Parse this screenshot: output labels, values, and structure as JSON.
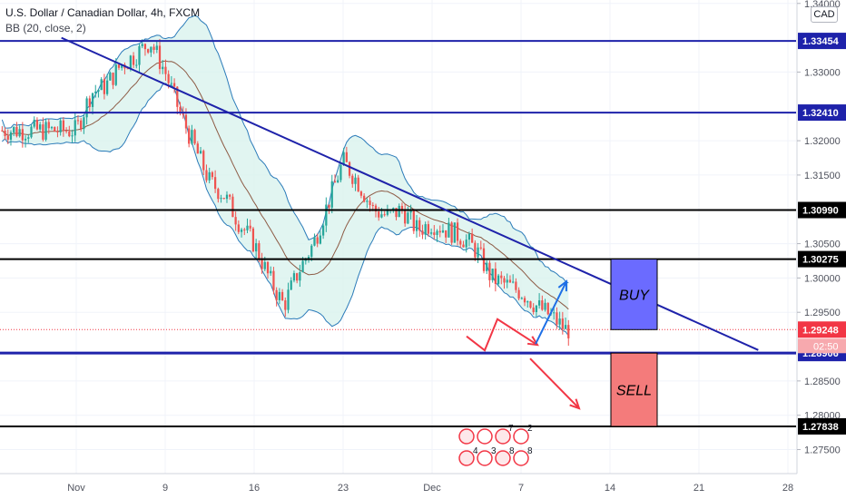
{
  "header": {
    "symbol_title": "U.S. Dollar / Canadian Dollar, 4h, FXCM",
    "indicator": "BB (20, close, 2)",
    "currency": "CAD"
  },
  "chart_data": {
    "type": "candlestick",
    "title": "U.S. Dollar / Canadian Dollar, 4h, FXCM",
    "indicator": "BB (20, close, 2)",
    "y_axis": {
      "ticks": [
        "1.34000",
        "1.33000",
        "1.32000",
        "1.31500",
        "1.30500",
        "1.30000",
        "1.29500",
        "1.28500",
        "1.28000",
        "1.27500"
      ],
      "ylim": [
        1.2715,
        1.3405
      ]
    },
    "x_axis": {
      "ticks": [
        "Nov",
        "9",
        "16",
        "23",
        "Dec",
        "7",
        "14",
        "21",
        "28"
      ]
    },
    "close_path": [
      [
        0,
        1.3215
      ],
      [
        1,
        1.327
      ],
      [
        2,
        1.328
      ],
      [
        3,
        1.331
      ],
      [
        4,
        1.3325
      ],
      [
        5,
        1.3345
      ],
      [
        6,
        1.33
      ],
      [
        7,
        1.324
      ],
      [
        8,
        1.319
      ],
      [
        9,
        1.314
      ],
      [
        10,
        1.312
      ],
      [
        11,
        1.308
      ],
      [
        12,
        1.305
      ],
      [
        13,
        1.3
      ],
      [
        14,
        1.296
      ],
      [
        15,
        1.301
      ],
      [
        16,
        1.305
      ],
      [
        17,
        1.311
      ],
      [
        18,
        1.317
      ],
      [
        19,
        1.314
      ],
      [
        20,
        1.31
      ],
      [
        21,
        1.309
      ],
      [
        22,
        1.31
      ],
      [
        23,
        1.307
      ],
      [
        24,
        1.308
      ],
      [
        25,
        1.307
      ],
      [
        26,
        1.306
      ],
      [
        27,
        1.304
      ],
      [
        28,
        1.3
      ],
      [
        29,
        1.299
      ],
      [
        30,
        1.298
      ],
      [
        31,
        1.296
      ],
      [
        32,
        1.2945
      ],
      [
        33,
        1.2925
      ]
    ],
    "horizontal_levels": [
      {
        "label": "1.33454",
        "value": 1.33454,
        "color": "#1e22aa"
      },
      {
        "label": "1.32410",
        "value": 1.3241,
        "color": "#1e22aa"
      },
      {
        "label": "1.30990",
        "value": 1.3099,
        "color": "#000000"
      },
      {
        "label": "1.30275",
        "value": 1.30275,
        "color": "#000000"
      },
      {
        "label": "1.28906",
        "value": 1.28906,
        "color": "#1e22aa"
      },
      {
        "label": "1.27838",
        "value": 1.27838,
        "color": "#000000"
      }
    ],
    "current_price": {
      "label": "1.29248",
      "value": 1.29248,
      "color": "#f23645"
    },
    "countdown": "02:50",
    "trendline": {
      "from": [
        -1,
        1.335
      ],
      "to": [
        46,
        1.2895
      ],
      "color": "#1e22aa"
    },
    "annotations": {
      "buy_box": {
        "text": "BUY",
        "color": "#6b6bff",
        "from_y": 1.30275,
        "to_y": 1.29248
      },
      "sell_box": {
        "text": "SELL",
        "color": "#f47b7b",
        "from_y": 1.28906,
        "to_y": 1.27838
      },
      "bull_arrow_color": "#1e6fe6",
      "bear_arrow_color": "#f23645"
    },
    "events_markers": {
      "counts": [
        "7",
        "2",
        "4",
        "3",
        "8",
        "8"
      ]
    },
    "colors": {
      "up": "#26a69a",
      "down": "#ef5350",
      "bb_band": "#2b7bb9",
      "bb_basis": "#8d5b45",
      "bb_fill": "#d9f2ee"
    }
  }
}
